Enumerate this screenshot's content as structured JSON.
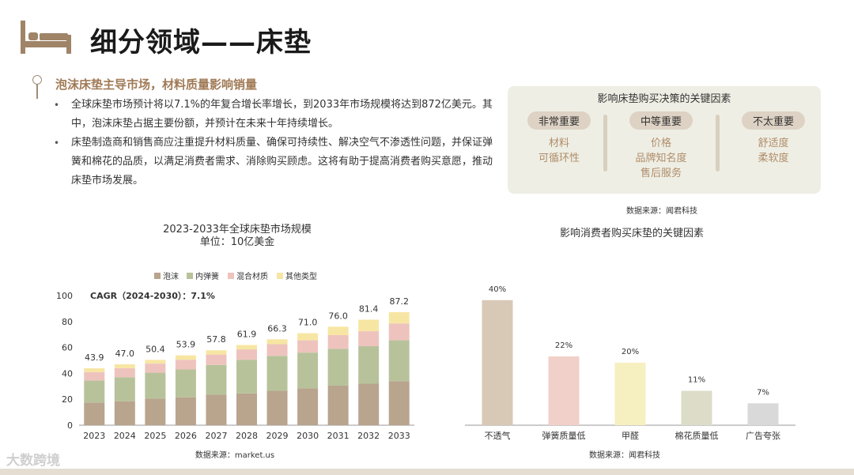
{
  "header": {
    "title": "细分领域——床垫"
  },
  "section": {
    "heading": "泡沫床垫主导市场，材料质量影响销量",
    "bullets": [
      "全球床垫市场预计将以7.1%的年复合增长率增长，到2033年市场规模将达到872亿美元。其中，泡沫床垫占据主要份额，并预计在未来十年持续增长。",
      "床垫制造商和销售商应注重提升材料质量、确保可持续性、解决空气不渗透性问题，并保证弹簧和棉花的品质，以满足消费者需求、消除购买顾虑。这将有助于提高消费者购买意愿，推动床垫市场发展。"
    ]
  },
  "factors": {
    "title": "影响床垫购买决策的关键因素",
    "columns": [
      {
        "label": "非常重要",
        "items": [
          "材料",
          "可循环性"
        ]
      },
      {
        "label": "中等重要",
        "items": [
          "价格",
          "品牌知名度",
          "售后服务"
        ]
      },
      {
        "label": "不太重要",
        "items": [
          "舒适度",
          "柔软度"
        ]
      }
    ],
    "source": "数据来源：闻君科技"
  },
  "footer": {
    "logo": "大数跨境"
  },
  "colors": {
    "foam": "#b9a48e",
    "spring": "#b7c29a",
    "hybrid": "#eec3bd",
    "other": "#f7e6a3",
    "accent": "#a07a56"
  },
  "chart_data": [
    {
      "type": "bar",
      "stacked": true,
      "title": "2023-2033年全球床垫市场规模",
      "subtitle": "单位：10亿美金",
      "annotation": "CAGR（2024-2030）：7.1%",
      "categories": [
        "2023",
        "2024",
        "2025",
        "2026",
        "2027",
        "2028",
        "2029",
        "2030",
        "2031",
        "2032",
        "2033"
      ],
      "series": [
        {
          "name": "泡沫",
          "values": [
            17.5,
            18.5,
            20.5,
            21.5,
            23.5,
            24.5,
            26.5,
            28.5,
            30.5,
            32.0,
            34.0
          ]
        },
        {
          "name": "内弹簧",
          "values": [
            17.0,
            18.5,
            20.0,
            21.5,
            23.0,
            26.0,
            27.0,
            27.5,
            28.5,
            29.0,
            31.5
          ]
        },
        {
          "name": "混合材质",
          "values": [
            6.5,
            7.0,
            7.0,
            7.5,
            8.0,
            8.0,
            9.0,
            9.5,
            10.5,
            11.5,
            13.0
          ]
        },
        {
          "name": "其他类型",
          "values": [
            2.9,
            3.0,
            2.9,
            3.4,
            3.3,
            3.4,
            3.8,
            5.5,
            6.5,
            8.9,
            8.7
          ]
        }
      ],
      "totals": [
        43.9,
        47.0,
        50.4,
        53.9,
        57.8,
        61.9,
        66.3,
        71.0,
        76.0,
        81.4,
        87.2
      ],
      "ylim": [
        0,
        100
      ],
      "yticks": [
        0,
        20,
        40,
        60,
        80,
        100
      ],
      "legend": "top",
      "source": "数据来源：market.us"
    },
    {
      "type": "bar",
      "title": "影响消费者购买床垫的关键因素",
      "categories": [
        "不透气",
        "弹簧质量低",
        "甲醛",
        "棉花质量低",
        "广告夸张"
      ],
      "values": [
        40,
        22,
        20,
        11,
        7
      ],
      "labels": [
        "40%",
        "22%",
        "20%",
        "11%",
        "7%"
      ],
      "colors": [
        "#d8c8b6",
        "#f1d0c9",
        "#f6efc0",
        "#dcdcc8",
        "#d9d9d9"
      ],
      "ylim": [
        0,
        45
      ],
      "source": "数据来源：闻君科技"
    }
  ]
}
